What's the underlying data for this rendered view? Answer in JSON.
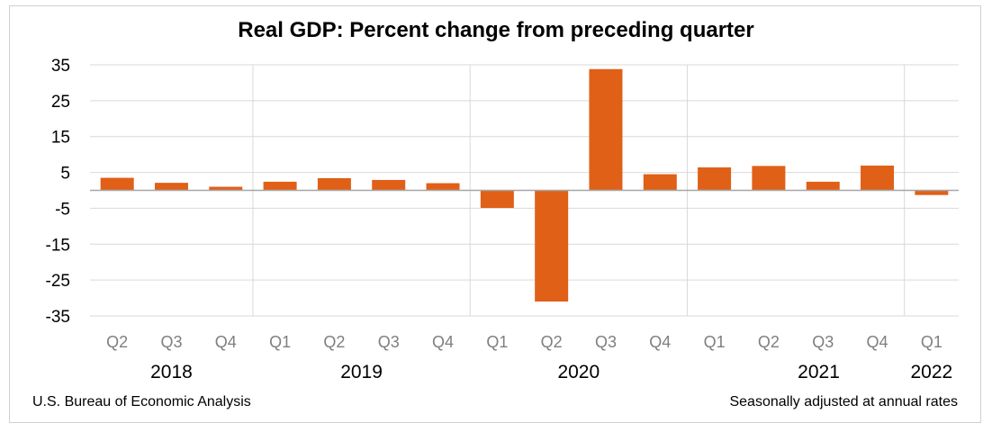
{
  "chart_data": {
    "type": "bar",
    "title": "Real GDP:  Percent change from preceding quarter",
    "categories": [
      "Q2",
      "Q3",
      "Q4",
      "Q1",
      "Q2",
      "Q3",
      "Q4",
      "Q1",
      "Q2",
      "Q3",
      "Q4",
      "Q1",
      "Q2",
      "Q3",
      "Q4",
      "Q1"
    ],
    "years": [
      {
        "label": "2018",
        "span": [
          0,
          2
        ]
      },
      {
        "label": "2019",
        "span": [
          3,
          6
        ]
      },
      {
        "label": "2020",
        "span": [
          7,
          10
        ]
      },
      {
        "label": "2021",
        "span": [
          11,
          14
        ]
      },
      {
        "label": "2022",
        "span": [
          15,
          15
        ]
      }
    ],
    "series": [
      {
        "values": [
          3.5,
          2.1,
          1.0,
          2.4,
          3.4,
          2.9,
          2.0,
          -4.9,
          -31.0,
          33.8,
          4.5,
          6.4,
          6.8,
          2.4,
          6.9,
          -1.3
        ]
      }
    ],
    "yticks": [
      35,
      25,
      15,
      5,
      -5,
      -15,
      -25,
      -35
    ],
    "ylim": [
      -35,
      35
    ],
    "bar_color": "#E06018",
    "grid": true
  },
  "footer": {
    "source": "U.S. Bureau of Economic  Analysis",
    "note": "Seasonally adjusted  at annual rates"
  }
}
